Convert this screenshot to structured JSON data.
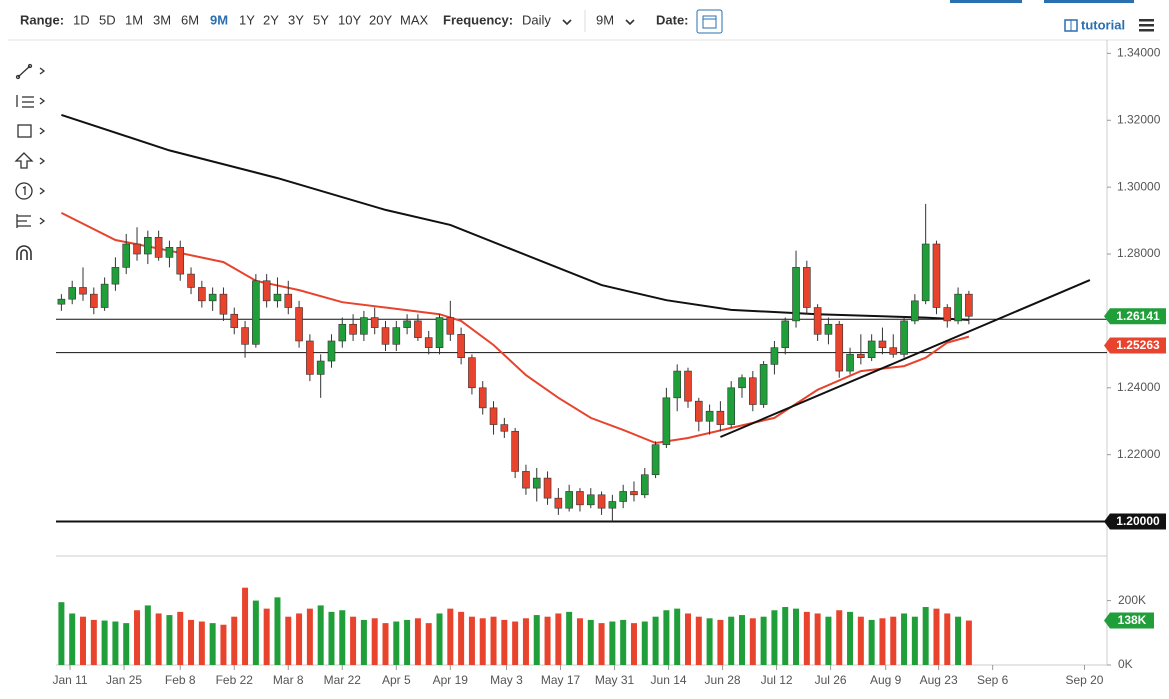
{
  "toolbar": {
    "range_label": "Range:",
    "ranges": [
      "1D",
      "5D",
      "1M",
      "3M",
      "6M",
      "9M",
      "1Y",
      "2Y",
      "3Y",
      "5Y",
      "10Y",
      "20Y",
      "MAX"
    ],
    "active_range_index": 5,
    "frequency_label": "Frequency:",
    "frequency": "Daily",
    "period": "9M",
    "date_label": "Date:",
    "tutorial": "tutorial"
  },
  "chart_data": {
    "type": "candlestick",
    "up_color": "#1f9e3a",
    "down_color": "#e8432d",
    "candles": [
      [
        1.265,
        1.268,
        1.263,
        1.2665
      ],
      [
        1.2665,
        1.272,
        1.265,
        1.27
      ],
      [
        1.27,
        1.276,
        1.266,
        1.268
      ],
      [
        1.268,
        1.27,
        1.262,
        1.264
      ],
      [
        1.264,
        1.273,
        1.263,
        1.271
      ],
      [
        1.271,
        1.279,
        1.269,
        1.276
      ],
      [
        1.276,
        1.286,
        1.274,
        1.283
      ],
      [
        1.283,
        1.288,
        1.278,
        1.28
      ],
      [
        1.28,
        1.287,
        1.277,
        1.285
      ],
      [
        1.285,
        1.287,
        1.278,
        1.279
      ],
      [
        1.279,
        1.284,
        1.276,
        1.282
      ],
      [
        1.282,
        1.284,
        1.272,
        1.274
      ],
      [
        1.274,
        1.276,
        1.268,
        1.27
      ],
      [
        1.27,
        1.272,
        1.264,
        1.266
      ],
      [
        1.266,
        1.27,
        1.263,
        1.268
      ],
      [
        1.268,
        1.27,
        1.26,
        1.262
      ],
      [
        1.262,
        1.264,
        1.256,
        1.258
      ],
      [
        1.258,
        1.26,
        1.249,
        1.253
      ],
      [
        1.253,
        1.274,
        1.252,
        1.272
      ],
      [
        1.272,
        1.274,
        1.264,
        1.266
      ],
      [
        1.266,
        1.273,
        1.264,
        1.268
      ],
      [
        1.268,
        1.272,
        1.262,
        1.264
      ],
      [
        1.264,
        1.266,
        1.252,
        1.254
      ],
      [
        1.254,
        1.256,
        1.242,
        1.244
      ],
      [
        1.244,
        1.25,
        1.237,
        1.248
      ],
      [
        1.248,
        1.256,
        1.246,
        1.254
      ],
      [
        1.254,
        1.261,
        1.252,
        1.259
      ],
      [
        1.259,
        1.262,
        1.254,
        1.256
      ],
      [
        1.256,
        1.263,
        1.254,
        1.261
      ],
      [
        1.261,
        1.264,
        1.256,
        1.258
      ],
      [
        1.258,
        1.26,
        1.251,
        1.253
      ],
      [
        1.253,
        1.26,
        1.251,
        1.258
      ],
      [
        1.258,
        1.262,
        1.256,
        1.26
      ],
      [
        1.26,
        1.262,
        1.254,
        1.255
      ],
      [
        1.255,
        1.257,
        1.25,
        1.252
      ],
      [
        1.252,
        1.262,
        1.25,
        1.261
      ],
      [
        1.261,
        1.266,
        1.254,
        1.256
      ],
      [
        1.256,
        1.258,
        1.247,
        1.249
      ],
      [
        1.249,
        1.25,
        1.238,
        1.24
      ],
      [
        1.24,
        1.242,
        1.232,
        1.234
      ],
      [
        1.234,
        1.236,
        1.226,
        1.229
      ],
      [
        1.229,
        1.231,
        1.225,
        1.227
      ],
      [
        1.227,
        1.228,
        1.213,
        1.215
      ],
      [
        1.215,
        1.217,
        1.208,
        1.21
      ],
      [
        1.21,
        1.216,
        1.206,
        1.213
      ],
      [
        1.213,
        1.215,
        1.205,
        1.207
      ],
      [
        1.207,
        1.21,
        1.202,
        1.204
      ],
      [
        1.204,
        1.211,
        1.203,
        1.209
      ],
      [
        1.209,
        1.21,
        1.203,
        1.205
      ],
      [
        1.205,
        1.21,
        1.204,
        1.208
      ],
      [
        1.208,
        1.209,
        1.202,
        1.204
      ],
      [
        1.204,
        1.208,
        1.2,
        1.206
      ],
      [
        1.206,
        1.211,
        1.204,
        1.209
      ],
      [
        1.209,
        1.212,
        1.206,
        1.208
      ],
      [
        1.208,
        1.216,
        1.207,
        1.214
      ],
      [
        1.214,
        1.224,
        1.213,
        1.223
      ],
      [
        1.223,
        1.24,
        1.222,
        1.237
      ],
      [
        1.237,
        1.247,
        1.233,
        1.245
      ],
      [
        1.245,
        1.246,
        1.234,
        1.236
      ],
      [
        1.236,
        1.237,
        1.227,
        1.23
      ],
      [
        1.23,
        1.235,
        1.226,
        1.233
      ],
      [
        1.233,
        1.236,
        1.227,
        1.229
      ],
      [
        1.229,
        1.242,
        1.228,
        1.24
      ],
      [
        1.24,
        1.244,
        1.237,
        1.243
      ],
      [
        1.243,
        1.245,
        1.233,
        1.235
      ],
      [
        1.235,
        1.248,
        1.234,
        1.247
      ],
      [
        1.247,
        1.254,
        1.244,
        1.252
      ],
      [
        1.252,
        1.261,
        1.25,
        1.26
      ],
      [
        1.26,
        1.281,
        1.258,
        1.276
      ],
      [
        1.276,
        1.278,
        1.262,
        1.264
      ],
      [
        1.264,
        1.265,
        1.254,
        1.256
      ],
      [
        1.256,
        1.261,
        1.253,
        1.259
      ],
      [
        1.259,
        1.26,
        1.243,
        1.245
      ],
      [
        1.245,
        1.252,
        1.244,
        1.25
      ],
      [
        1.25,
        1.256,
        1.247,
        1.249
      ],
      [
        1.249,
        1.256,
        1.248,
        1.254
      ],
      [
        1.254,
        1.258,
        1.25,
        1.252
      ],
      [
        1.252,
        1.256,
        1.249,
        1.25
      ],
      [
        1.25,
        1.261,
        1.249,
        1.26
      ],
      [
        1.26,
        1.268,
        1.259,
        1.266
      ],
      [
        1.266,
        1.295,
        1.265,
        1.283
      ],
      [
        1.283,
        1.284,
        1.262,
        1.264
      ],
      [
        1.264,
        1.265,
        1.258,
        1.26
      ],
      [
        1.26,
        1.27,
        1.259,
        1.268
      ],
      [
        1.268,
        1.269,
        1.259,
        1.2614
      ]
    ],
    "xlim": [
      -0.5,
      96.6
    ],
    "xticks": [
      {
        "value": 0.8,
        "label": "Jan 11"
      },
      {
        "value": 5.8,
        "label": "Jan 25"
      },
      {
        "value": 11,
        "label": "Feb 8"
      },
      {
        "value": 16,
        "label": "Feb 22"
      },
      {
        "value": 21,
        "label": "Mar 8"
      },
      {
        "value": 26,
        "label": "Mar 22"
      },
      {
        "value": 31,
        "label": "Apr 5"
      },
      {
        "value": 36,
        "label": "Apr 19"
      },
      {
        "value": 41.2,
        "label": "May 3"
      },
      {
        "value": 46.2,
        "label": "May 17"
      },
      {
        "value": 51.2,
        "label": "May 31"
      },
      {
        "value": 56.2,
        "label": "Jun 14"
      },
      {
        "value": 61.2,
        "label": "Jun 28"
      },
      {
        "value": 66.2,
        "label": "Jul 12"
      },
      {
        "value": 71.2,
        "label": "Jul 26"
      },
      {
        "value": 76.3,
        "label": "Aug 9"
      },
      {
        "value": 81.2,
        "label": "Aug 23"
      },
      {
        "value": 86.2,
        "label": "Sep 6"
      },
      {
        "value": 94.7,
        "label": "Sep 20"
      }
    ],
    "ylim": [
      1.19,
      1.344
    ],
    "yticks": [
      {
        "value": 1.34,
        "label": "1.34000"
      },
      {
        "value": 1.32,
        "label": "1.32000"
      },
      {
        "value": 1.3,
        "label": "1.30000"
      },
      {
        "value": 1.28,
        "label": "1.28000"
      },
      {
        "value": 1.24,
        "label": "1.24000"
      },
      {
        "value": 1.22,
        "label": "1.22000"
      }
    ],
    "moving_averages": [
      {
        "color": "#111111",
        "x": [
          0,
          10,
          20,
          30,
          36,
          42,
          50,
          56,
          62,
          70,
          80,
          84
        ],
        "values": [
          1.3216,
          1.311,
          1.3027,
          1.2932,
          1.2887,
          1.281,
          1.2707,
          1.2662,
          1.2633,
          1.262,
          1.261,
          1.2603
        ]
      },
      {
        "color": "#e8432d",
        "x": [
          0,
          5,
          10,
          15,
          18,
          22,
          26,
          30,
          35,
          37,
          40,
          43,
          46,
          49,
          52,
          55,
          58,
          62,
          66,
          70,
          74,
          78,
          80,
          82,
          84
        ],
        "values": [
          1.2923,
          1.2842,
          1.281,
          1.2776,
          1.272,
          1.2692,
          1.2656,
          1.264,
          1.262,
          1.26,
          1.2528,
          1.2438,
          1.237,
          1.231,
          1.2274,
          1.2235,
          1.225,
          1.228,
          1.231,
          1.2394,
          1.245,
          1.2465,
          1.249,
          1.2535,
          1.2553
        ]
      }
    ],
    "horizontal_lines": [
      {
        "value": 1.2605,
        "width": 1
      },
      {
        "value": 1.2505,
        "width": 1
      },
      {
        "value": 1.2,
        "width": 2
      }
    ],
    "trendline": {
      "x": [
        61,
        95.2
      ],
      "values": [
        1.2253,
        1.2722
      ]
    },
    "price_labels": [
      {
        "value": 1.26141,
        "label": "1.26141",
        "color": "#1f9e3a"
      },
      {
        "value": 1.25263,
        "label": "1.25263",
        "color": "#e8432d"
      },
      {
        "value": 1.2,
        "label": "1.20000",
        "color": "#111111"
      }
    ],
    "volume": {
      "values": [
        195000,
        160000,
        150000,
        140000,
        138000,
        135000,
        130000,
        170000,
        185000,
        160000,
        155000,
        165000,
        140000,
        135000,
        130000,
        125000,
        150000,
        240000,
        200000,
        175000,
        210000,
        150000,
        160000,
        175000,
        185000,
        165000,
        170000,
        150000,
        140000,
        145000,
        130000,
        135000,
        140000,
        145000,
        130000,
        160000,
        175000,
        165000,
        150000,
        145000,
        150000,
        140000,
        135000,
        145000,
        155000,
        150000,
        160000,
        165000,
        145000,
        140000,
        130000,
        135000,
        140000,
        130000,
        135000,
        150000,
        170000,
        175000,
        160000,
        150000,
        145000,
        140000,
        150000,
        155000,
        145000,
        150000,
        170000,
        180000,
        175000,
        165000,
        160000,
        150000,
        170000,
        165000,
        150000,
        140000,
        145000,
        150000,
        160000,
        150000,
        180000,
        175000,
        160000,
        150000,
        138000
      ],
      "ylim": [
        0,
        326000
      ],
      "yticks": [
        {
          "value": 200000,
          "label": "200K"
        },
        {
          "value": 0,
          "label": "0K"
        }
      ],
      "last": {
        "value": 138000,
        "label": "138K"
      }
    }
  }
}
